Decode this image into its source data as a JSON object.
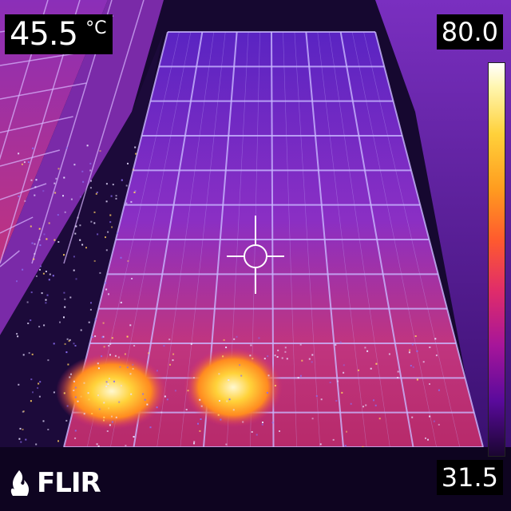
{
  "camera": {
    "spot_temperature": "45.5",
    "unit": "°C",
    "scale_max": "80.0",
    "scale_min": "31.5",
    "brand": "FLIR",
    "palette": "iron"
  },
  "colors": {
    "panel_cool": "#6a1fb8",
    "panel_warm": "#c93a8a",
    "hotspot": "#ffe46a",
    "frame": "#b59cf0"
  },
  "icons": [
    "crosshair-icon",
    "flir-flame-icon"
  ]
}
